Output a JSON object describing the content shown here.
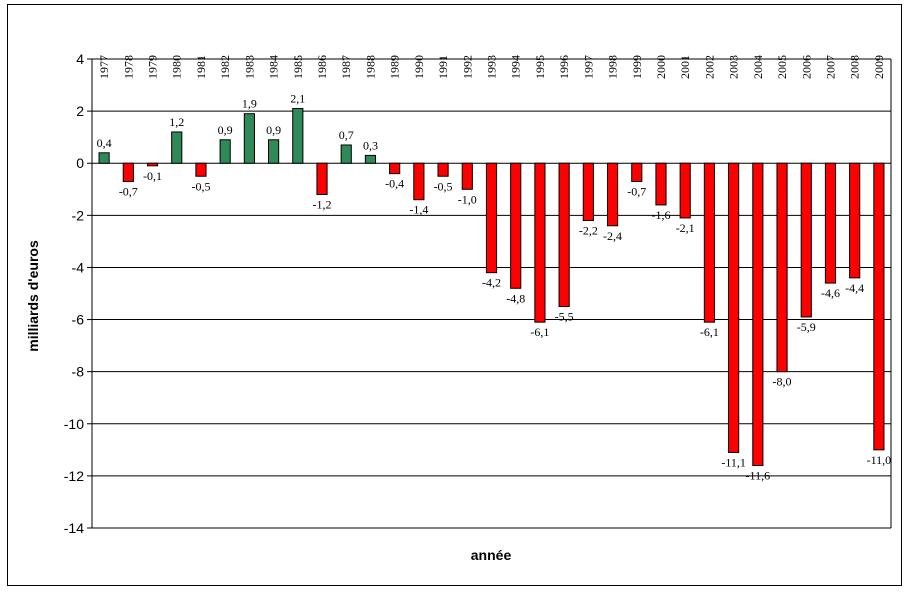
{
  "chart_data": {
    "type": "bar",
    "xlabel": "année",
    "ylabel": "milliards d'euros",
    "ylim": [
      -14,
      4
    ],
    "yticks": [
      4,
      2,
      0,
      -2,
      -4,
      -6,
      -8,
      -10,
      -12,
      -14
    ],
    "grid": true,
    "legend": "none",
    "colors": {
      "positive": "#2E8B57",
      "negative": "#FF0000"
    },
    "categories": [
      "1977",
      "1978",
      "1979",
      "1980",
      "1981",
      "1982",
      "1983",
      "1984",
      "1985",
      "1986",
      "1987",
      "1988",
      "1989",
      "1990",
      "1991",
      "1992",
      "1993",
      "1994",
      "1995",
      "1996",
      "1997",
      "1998",
      "1999",
      "2000",
      "2001",
      "2002",
      "2003",
      "2004",
      "2005",
      "2006",
      "2007",
      "2008",
      "2009"
    ],
    "values": [
      0.4,
      -0.7,
      -0.1,
      1.2,
      -0.5,
      0.9,
      1.9,
      0.9,
      2.1,
      -1.2,
      0.7,
      0.3,
      -0.4,
      -1.4,
      -0.5,
      -1.0,
      -4.2,
      -4.8,
      -6.1,
      -5.5,
      -2.2,
      -2.4,
      -0.7,
      -1.6,
      -2.1,
      -6.1,
      -11.1,
      -11.6,
      -8.0,
      -5.9,
      -4.6,
      -4.4,
      -11.0
    ],
    "data_labels": [
      "0,4",
      "-0,7",
      "-0,1",
      "1,2",
      "-0,5",
      "0,9",
      "1,9",
      "0,9",
      "2,1",
      "-1,2",
      "0,7",
      "0,3",
      "-0,4",
      "-1,4",
      "-0,5",
      "-1,0",
      "-4,2",
      "-4,8",
      "-6,1",
      "-5,5",
      "-2,2",
      "-2,4",
      "-0,7",
      "-1,6",
      "-2,1",
      "-6,1",
      "-11,1",
      "-11,6",
      "-8,0",
      "-5,9",
      "-4,6",
      "-4,4",
      "-11,0"
    ]
  }
}
